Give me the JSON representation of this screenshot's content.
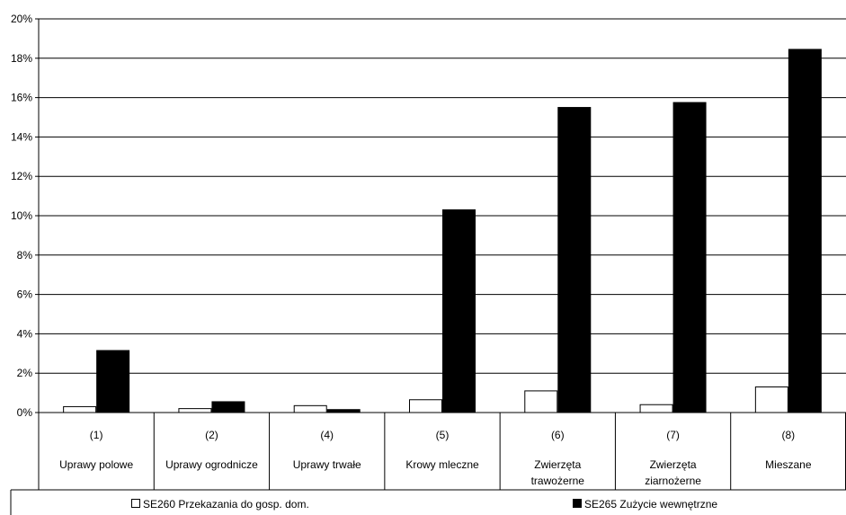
{
  "chart_data": {
    "type": "bar",
    "categories": [
      {
        "code": "(1)",
        "name": [
          "Uprawy polowe"
        ]
      },
      {
        "code": "(2)",
        "name": [
          "Uprawy ogrodnicze"
        ]
      },
      {
        "code": "(4)",
        "name": [
          "Uprawy trwałe"
        ]
      },
      {
        "code": "(5)",
        "name": [
          "Krowy mleczne"
        ]
      },
      {
        "code": "(6)",
        "name": [
          "Zwierzęta",
          "trawożerne"
        ]
      },
      {
        "code": "(7)",
        "name": [
          "Zwierzęta",
          "ziarnożerne"
        ]
      },
      {
        "code": "(8)",
        "name": [
          "Mieszane"
        ]
      }
    ],
    "series": [
      {
        "name": "SE260 Przekazania do gosp. dom.",
        "color": "#ffffff",
        "values": [
          0.3,
          0.2,
          0.35,
          0.65,
          1.1,
          0.4,
          1.3
        ]
      },
      {
        "name": "SE265 Zużycie wewnętrzne",
        "color": "#000000",
        "values": [
          3.15,
          0.55,
          0.15,
          10.3,
          15.5,
          15.75,
          18.45
        ]
      }
    ],
    "ylim": [
      0,
      20
    ],
    "yticks": [
      0,
      2,
      4,
      6,
      8,
      10,
      12,
      14,
      16,
      18,
      20
    ],
    "ytick_labels": [
      "0%",
      "2%",
      "4%",
      "6%",
      "8%",
      "10%",
      "12%",
      "14%",
      "16%",
      "18%",
      "20%"
    ],
    "grid": true,
    "legend_position": "bottom"
  }
}
